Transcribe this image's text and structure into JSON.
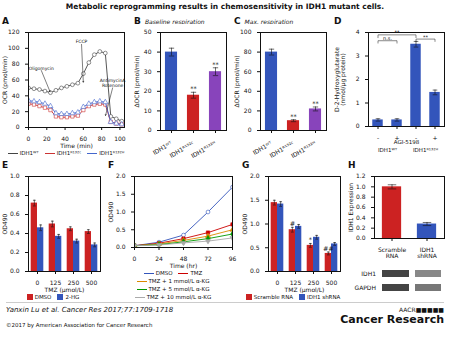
{
  "title": "Metabolic reprogramming results in chemosensitivity in IDH1 mutant cells.",
  "annotations": [
    "Yanxin Lu et al. Cancer Res 2017;77:1709-1718",
    "©2017 by American Association for Cancer Research",
    "AACR■■■■■",
    "Cancer Research"
  ],
  "chart_data": [
    {
      "type": "line",
      "title": "A",
      "xlabel": "Time (min)",
      "ylabel": "OCR (pmol/min)",
      "xlim": [
        0,
        105
      ],
      "ylim": [
        0,
        120
      ],
      "xticks": [
        0,
        20,
        40,
        60,
        80,
        100
      ],
      "yticks": [
        0,
        20,
        40,
        60,
        80,
        100,
        120
      ],
      "legend": "bottom",
      "series": [
        {
          "name": "IDH1ᵂᵀ",
          "color": "#444444",
          "marker": "circle-open",
          "x": [
            0,
            6,
            12,
            18,
            24,
            30,
            36,
            42,
            48,
            54,
            60,
            66,
            72,
            78,
            84,
            90,
            96,
            102
          ],
          "values": [
            50,
            49,
            48,
            46,
            44,
            47,
            50,
            52,
            54,
            56,
            68,
            82,
            92,
            96,
            94,
            14,
            11,
            8
          ]
        },
        {
          "name": "IDH1ᴿ¹³²ᶜ",
          "color": "#cc3333",
          "marker": "square-open",
          "x": [
            0,
            6,
            12,
            18,
            24,
            30,
            36,
            42,
            48,
            54,
            60,
            66,
            72,
            78,
            84,
            90,
            96,
            102
          ],
          "values": [
            30,
            29,
            27,
            25,
            22,
            14,
            13,
            13,
            14,
            15,
            22,
            27,
            29,
            30,
            29,
            7,
            5,
            4
          ]
        },
        {
          "name": "IDH1ᴿ¹³²ᴴ",
          "color": "#4466cc",
          "marker": "triangle-open",
          "x": [
            0,
            6,
            12,
            18,
            24,
            30,
            36,
            42,
            48,
            54,
            60,
            66,
            72,
            78,
            84,
            90,
            96,
            102
          ],
          "values": [
            34,
            33,
            32,
            30,
            27,
            18,
            17,
            17,
            18,
            19,
            26,
            30,
            32,
            33,
            32,
            7,
            5,
            4
          ]
        }
      ],
      "annotations": [
        {
          "text": "Oligomycin",
          "x": 24,
          "y": 44,
          "text_x": 14,
          "text_y": 72
        },
        {
          "text": "FCCP",
          "x": 60,
          "y": 56,
          "text_x": 58,
          "text_y": 105
        },
        {
          "text": "AntimycinA\nRotenone",
          "x": 84,
          "y": 14,
          "text_x": 92,
          "text_y": 50
        }
      ]
    },
    {
      "type": "bar",
      "title": "B",
      "subtitle": "Baseline respiration",
      "ylabel": "ΔOCR (pmol/min)",
      "categories": [
        "IDH1ᵂᵀ",
        "IDH1ᴿ¹³²ᶜ",
        "IDH1ᴿ¹³²ᴴ"
      ],
      "values": [
        40,
        18,
        30
      ],
      "errors": [
        2,
        1.5,
        2
      ],
      "colors": [
        "#3355bb",
        "#cc2222",
        "#8844bb"
      ],
      "significance": [
        null,
        "**",
        "**"
      ],
      "ylim": [
        0,
        50
      ],
      "yticks": [
        0,
        10,
        20,
        30,
        40,
        50
      ]
    },
    {
      "type": "bar",
      "title": "C",
      "subtitle": "Max. respiration",
      "ylabel": "ΔOCR (pmol/min)",
      "categories": [
        "IDH1ᵂᵀ",
        "IDH1ᴿ¹³²ᶜ",
        "IDH1ᴿ¹³²ᴴ"
      ],
      "values": [
        80,
        10,
        22
      ],
      "errors": [
        3,
        1,
        2
      ],
      "colors": [
        "#3355bb",
        "#cc2222",
        "#8844bb"
      ],
      "significance": [
        null,
        "**",
        "**"
      ],
      "ylim": [
        0,
        100
      ],
      "yticks": [
        0,
        20,
        40,
        60,
        80,
        100
      ]
    },
    {
      "type": "bar",
      "title": "D",
      "ylabel": "D-2-Hydroxyglutarate\n(nmol/μg protein)",
      "xlabel": "AGI-5198",
      "categories": [
        "-",
        "+",
        "-",
        "+"
      ],
      "groups": [
        "IDH1ᵂᵀ",
        "IDH1ᴿ¹³²ᴴ"
      ],
      "values": [
        0.28,
        0.28,
        3.5,
        1.45
      ],
      "errors": [
        0.05,
        0.05,
        0.12,
        0.1
      ],
      "colors": [
        "#3355bb",
        "#3355bb",
        "#3355bb",
        "#3355bb"
      ],
      "brackets": [
        {
          "from": 0,
          "to": 1,
          "y": [
            3.55,
            3.65
          ],
          "text": "n.s."
        },
        {
          "from": 0,
          "to": 2,
          "y": [
            3.78,
            3.9
          ],
          "text": "**"
        },
        {
          "from": 2,
          "to": 3,
          "y": [
            3.62,
            3.72
          ],
          "text": "**"
        }
      ],
      "ylim": [
        0,
        4
      ],
      "yticks": [
        0,
        1,
        2,
        3,
        4
      ]
    },
    {
      "type": "bar",
      "title": "E",
      "xlabel": "TMZ (μmol/L)",
      "ylabel": "OD490",
      "categories": [
        0,
        125,
        250,
        500
      ],
      "legend": "bottom",
      "series": [
        {
          "name": "DMSO",
          "color": "#cc2222",
          "values": [
            0.72,
            0.5,
            0.45,
            0.42
          ],
          "errors": [
            0.03,
            0.03,
            0.02,
            0.02
          ]
        },
        {
          "name": "2-HG",
          "color": "#3355bb",
          "values": [
            0.46,
            0.37,
            0.32,
            0.28
          ],
          "errors": [
            0.03,
            0.02,
            0.02,
            0.02
          ]
        }
      ],
      "ylim": [
        0,
        1.0
      ],
      "yticks": [
        {
          "value": 0,
          "label": "0.0"
        },
        0.2,
        0.4,
        0.6,
        0.8,
        {
          "value": 1.0,
          "label": "1.0"
        }
      ]
    },
    {
      "type": "line",
      "title": "F",
      "xlabel": "Time (hr)",
      "ylabel": "OD490",
      "x": [
        0,
        24,
        48,
        72,
        96
      ],
      "xlim": [
        0,
        96
      ],
      "xticks": [
        0,
        24,
        48,
        72,
        96
      ],
      "ylim": [
        0,
        2.0
      ],
      "yticks": [
        {
          "value": 0,
          "label": "0.0"
        },
        0.5,
        {
          "value": 1.0,
          "label": "1.0"
        },
        1.5,
        {
          "value": 2.0,
          "label": "2.0"
        }
      ],
      "legend": "bottom",
      "series": [
        {
          "name": "DMSO",
          "color": "#3355bb",
          "marker": "circle-open",
          "values": [
            0.05,
            0.15,
            0.35,
            1.0,
            1.7
          ]
        },
        {
          "name": "TMZ",
          "color": "#cc0000",
          "marker": "square",
          "values": [
            0.05,
            0.12,
            0.25,
            0.42,
            0.65
          ]
        },
        {
          "name": "TMZ + 1 mmol/L α-KG",
          "color": "#dd8800",
          "marker": "triangle",
          "values": [
            0.05,
            0.1,
            0.2,
            0.32,
            0.5
          ]
        },
        {
          "name": "TMZ + 5 mmol/L α-KG",
          "color": "#009900",
          "marker": "diamond",
          "values": [
            0.05,
            0.08,
            0.16,
            0.25,
            0.38
          ]
        },
        {
          "name": "TMZ + 10 mmol/L α-KG",
          "color": "#aaaaaa",
          "marker": "triangle-down",
          "values": [
            0.05,
            0.07,
            0.13,
            0.18,
            0.27
          ]
        }
      ]
    },
    {
      "type": "bar",
      "title": "G",
      "xlabel": "TMZ (μmol/L)",
      "ylabel": "OD490",
      "categories": [
        0,
        125,
        250,
        500
      ],
      "legend": "bottom",
      "series": [
        {
          "name": "Scramble RNA",
          "color": "#cc2222",
          "values": [
            1.45,
            0.88,
            0.55,
            0.38
          ],
          "errors": [
            0.05,
            0.05,
            0.04,
            0.03
          ],
          "significance": [
            null,
            "#",
            "*",
            "##"
          ]
        },
        {
          "name": "IDH1 shRNA",
          "color": "#3355bb",
          "values": [
            1.42,
            0.95,
            0.72,
            0.58
          ],
          "errors": [
            0.05,
            0.04,
            0.04,
            0.03
          ]
        }
      ],
      "ylim": [
        0,
        2.0
      ],
      "yticks": [
        {
          "value": 0,
          "label": "0.0"
        },
        0.5,
        {
          "value": 1.0,
          "label": "1.0"
        },
        1.5,
        {
          "value": 2.0,
          "label": "2.0"
        }
      ]
    },
    {
      "type": "bar",
      "title": "H",
      "ylabel": "IDH1 Expression",
      "categories": [
        "Scramble\nRNA",
        "IDH1\nshRNA"
      ],
      "values": [
        1.0,
        0.28
      ],
      "errors": [
        0.04,
        0.03
      ],
      "colors": [
        "#cc2222",
        "#3355bb"
      ],
      "ylim": [
        0,
        1.2
      ],
      "yticks": [
        {
          "value": 0,
          "label": "0.0"
        },
        0.2,
        0.4,
        0.6,
        0.8,
        {
          "value": 1.0,
          "label": "1.0"
        },
        1.2
      ]
    },
    {
      "type": "blot",
      "categories": [
        "IDH1",
        "GAPDH"
      ],
      "colors": [
        "#444444",
        "#888888",
        "#444444",
        "#777777"
      ]
    }
  ]
}
